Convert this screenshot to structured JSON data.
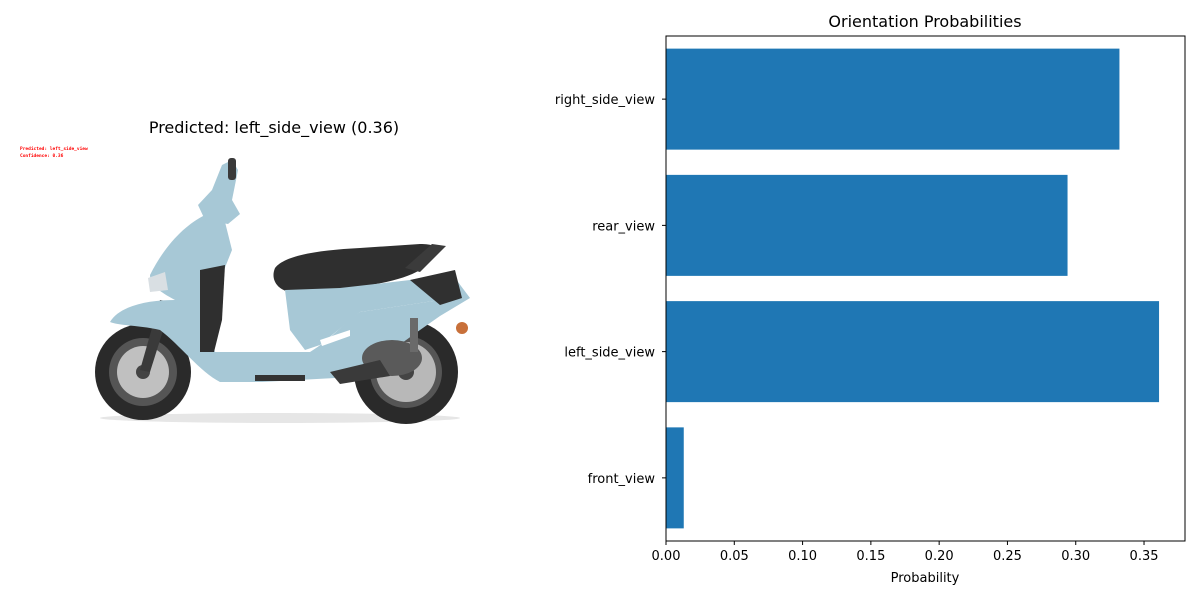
{
  "left_panel": {
    "title": "Predicted: left_side_view (0.36)",
    "overlay_predicted": "Predicted: left_side_view",
    "overlay_confidence": "Confidence: 0.36"
  },
  "colors": {
    "bar": "#1f77b4",
    "overlay_text": "#ff0000",
    "scooter_body": "#a7c8d6",
    "scooter_dark": "#2f2f2f"
  },
  "chart_data": {
    "type": "bar",
    "orientation": "horizontal",
    "title": "Orientation Probabilities",
    "xlabel": "Probability",
    "ylabel": "",
    "categories": [
      "front_view",
      "left_side_view",
      "rear_view",
      "right_side_view"
    ],
    "values": [
      0.013,
      0.361,
      0.294,
      0.332
    ],
    "xlim": [
      0.0,
      0.38
    ],
    "xticks": [
      "0.00",
      "0.05",
      "0.10",
      "0.15",
      "0.20",
      "0.25",
      "0.30",
      "0.35"
    ],
    "grid": false
  }
}
